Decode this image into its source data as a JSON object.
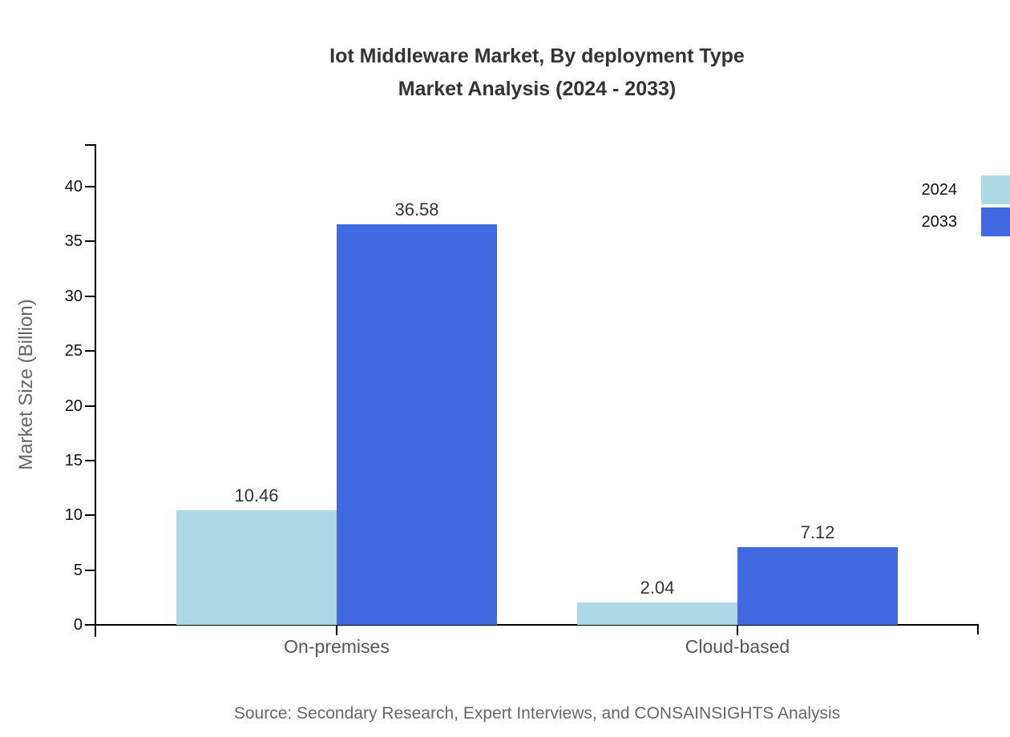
{
  "title": {
    "line1": "Iot Middleware Market, By deployment Type",
    "line2": "Market Analysis (2024 - 2033)"
  },
  "source_note": "Source: Secondary Research, Expert Interviews, and CONSAINSIGHTS Analysis",
  "chart_data": {
    "type": "bar",
    "title": "Iot Middleware Market, By deployment Type Market Analysis (2024 - 2033)",
    "categories": [
      "On-premises",
      "Cloud-based"
    ],
    "series": [
      {
        "name": "2024",
        "color": "#ADD8E6",
        "values": [
          10.46,
          2.04
        ]
      },
      {
        "name": "2033",
        "color": "#4169E1",
        "values": [
          36.58,
          7.12
        ]
      }
    ],
    "value_labels": [
      "10.46",
      "36.58",
      "2.04",
      "7.12"
    ],
    "xlabel": "",
    "ylabel": "Market Size (Billion)",
    "ylim": [
      0,
      40
    ],
    "yticks": [
      0,
      5,
      10,
      15,
      20,
      25,
      30,
      35,
      40
    ],
    "grid": false,
    "legend_position": "top-right",
    "bar_value_labels_shown": true
  },
  "colors": {
    "series_2024": "#ADD8E6",
    "series_2033": "#4169E1",
    "axis": "#000000",
    "title_text": "#333333",
    "tick_text": "#111111",
    "category_text": "#555555",
    "muted_text": "#666666",
    "background": "#ffffff"
  }
}
